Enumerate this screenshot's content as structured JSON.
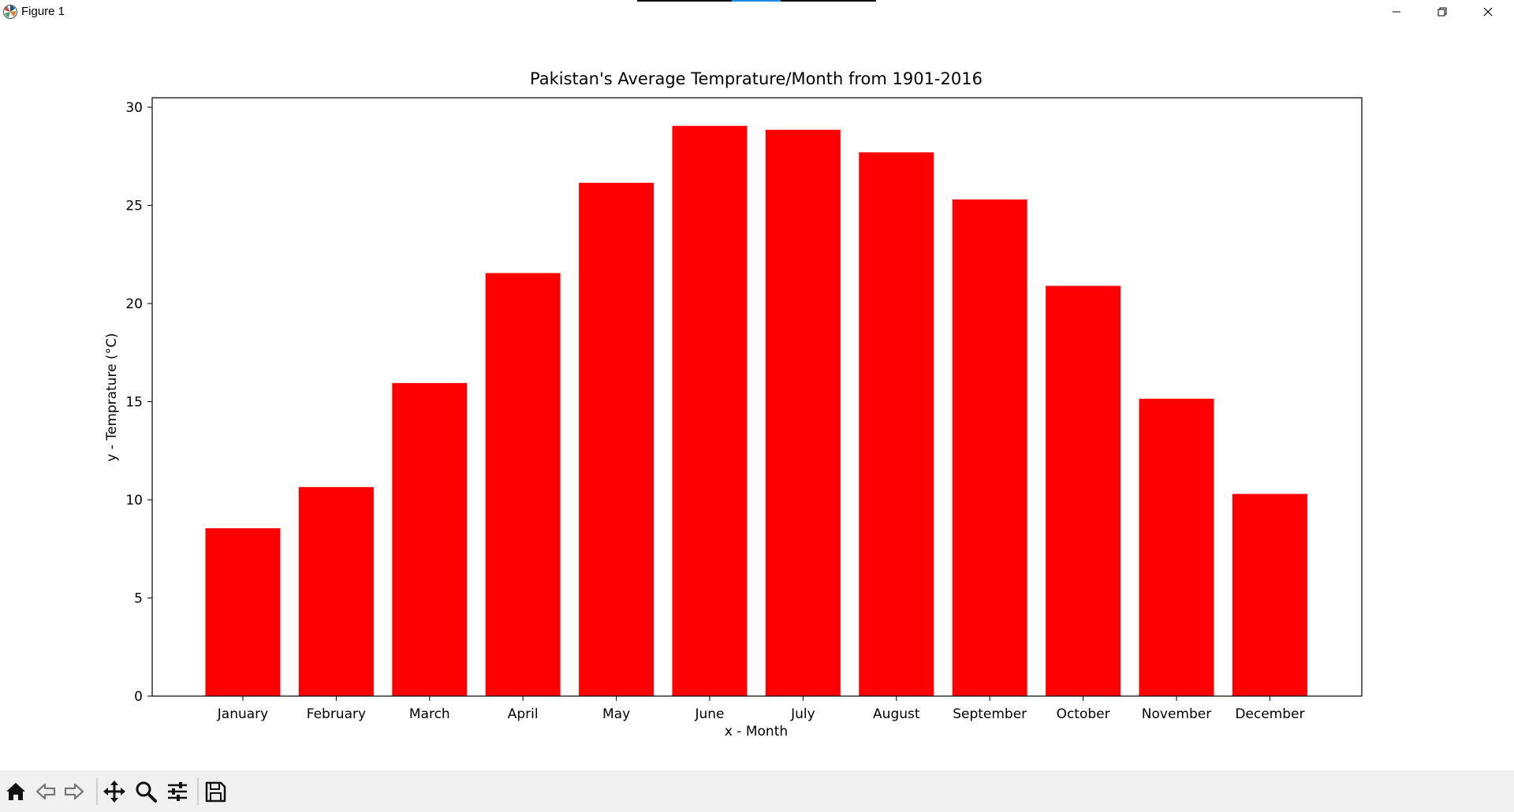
{
  "window": {
    "title": "Figure 1"
  },
  "toolbar": {
    "buttons": [
      "home-icon",
      "back-arrow-icon",
      "forward-arrow-icon",
      "pan-icon",
      "zoom-icon",
      "configure-subplots-icon",
      "save-icon"
    ]
  },
  "chart_data": {
    "type": "bar",
    "title": "Pakistan's Average Temprature/Month from 1901-2016",
    "xlabel": "x - Month",
    "ylabel": "y - Temprature (°C)",
    "categories": [
      "January",
      "February",
      "March",
      "April",
      "May",
      "June",
      "July",
      "August",
      "September",
      "October",
      "November",
      "December"
    ],
    "values": [
      8.55,
      10.65,
      15.95,
      21.55,
      26.15,
      29.05,
      28.85,
      27.7,
      25.3,
      20.9,
      15.15,
      10.3
    ],
    "ylim": [
      0,
      30.5
    ],
    "yticks": [
      0,
      5,
      10,
      15,
      20,
      25,
      30
    ],
    "bar_color": "#ff0000",
    "grid": false,
    "legend": "none"
  }
}
